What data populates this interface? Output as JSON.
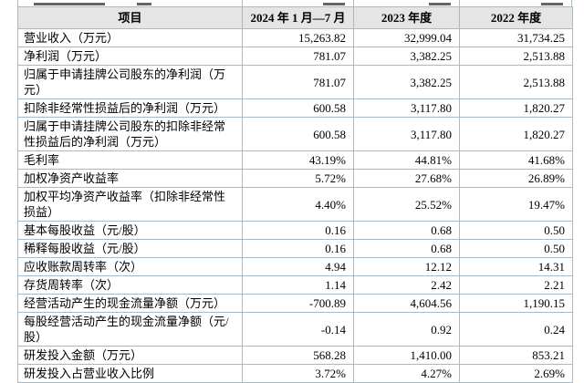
{
  "table": {
    "columns": [
      "项目",
      "2024 年 1 月—7 月",
      "2023 年度",
      "2022 年度"
    ],
    "rows": [
      {
        "item": "营业收入（万元）",
        "values": [
          "15,263.82",
          "32,999.04",
          "31,734.25"
        ]
      },
      {
        "item": "净利润（万元）",
        "values": [
          "781.07",
          "3,382.25",
          "2,513.88"
        ]
      },
      {
        "item": "归属于申请挂牌公司股东的净利润（万元）",
        "values": [
          "781.07",
          "3,382.25",
          "2,513.88"
        ]
      },
      {
        "item": "扣除非经常性损益后的净利润（万元）",
        "values": [
          "600.58",
          "3,117.80",
          "1,820.27"
        ]
      },
      {
        "item": "归属于申请挂牌公司股东的扣除非经常性损益后的净利润（万元）",
        "values": [
          "600.58",
          "3,117.80",
          "1,820.27"
        ]
      },
      {
        "item": "毛利率",
        "values": [
          "43.19%",
          "44.81%",
          "41.68%"
        ]
      },
      {
        "item": "加权净资产收益率",
        "values": [
          "5.72%",
          "27.68%",
          "26.89%"
        ]
      },
      {
        "item": "加权平均净资产收益率（扣除非经常性损益）",
        "values": [
          "4.40%",
          "25.52%",
          "19.47%"
        ]
      },
      {
        "item": "基本每股收益（元/股）",
        "values": [
          "0.16",
          "0.68",
          "0.50"
        ]
      },
      {
        "item": "稀释每股收益（元/股）",
        "values": [
          "0.16",
          "0.68",
          "0.50"
        ]
      },
      {
        "item": "应收账款周转率（次）",
        "values": [
          "4.94",
          "12.12",
          "14.31"
        ]
      },
      {
        "item": "存货周转率（次）",
        "values": [
          "1.14",
          "2.42",
          "2.21"
        ]
      },
      {
        "item": "经营活动产生的现金流量净额（万元）",
        "values": [
          "-700.89",
          "4,604.56",
          "1,190.15"
        ]
      },
      {
        "item": "每股经营活动产生的现金流量净额（元/股）",
        "values": [
          "-0.14",
          "0.92",
          "0.24"
        ]
      },
      {
        "item": "研发投入金额（万元）",
        "values": [
          "568.28",
          "1,410.00",
          "853.21"
        ]
      },
      {
        "item": "研发投入占营业收入比例",
        "values": [
          "3.72%",
          "4.27%",
          "2.69%"
        ]
      }
    ]
  },
  "colors": {
    "grid_border": "#a3bccd",
    "header_background": "#e5e5e5",
    "text": "#000000",
    "page_background": "#ffffff"
  }
}
